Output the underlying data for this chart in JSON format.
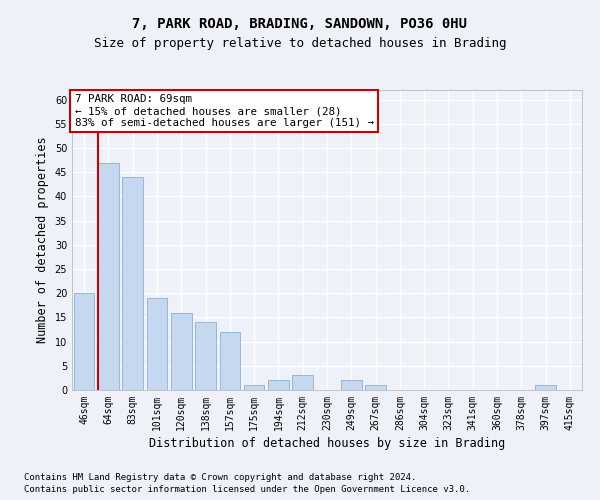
{
  "title1": "7, PARK ROAD, BRADING, SANDOWN, PO36 0HU",
  "title2": "Size of property relative to detached houses in Brading",
  "xlabel": "Distribution of detached houses by size in Brading",
  "ylabel": "Number of detached properties",
  "categories": [
    "46sqm",
    "64sqm",
    "83sqm",
    "101sqm",
    "120sqm",
    "138sqm",
    "157sqm",
    "175sqm",
    "194sqm",
    "212sqm",
    "230sqm",
    "249sqm",
    "267sqm",
    "286sqm",
    "304sqm",
    "323sqm",
    "341sqm",
    "360sqm",
    "378sqm",
    "397sqm",
    "415sqm"
  ],
  "values": [
    20,
    47,
    44,
    19,
    16,
    14,
    12,
    1,
    2,
    3,
    0,
    2,
    1,
    0,
    0,
    0,
    0,
    0,
    0,
    1,
    0
  ],
  "bar_color": "#c5d8f0",
  "bar_edge_color": "#8ab0d8",
  "vline_x_index": 1,
  "vline_color": "#cc0000",
  "annotation_title": "7 PARK ROAD: 69sqm",
  "annotation_line1": "← 15% of detached houses are smaller (28)",
  "annotation_line2": "83% of semi-detached houses are larger (151) →",
  "annotation_box_color": "#ffffff",
  "annotation_border_color": "#cc0000",
  "ylim": [
    0,
    62
  ],
  "yticks": [
    0,
    5,
    10,
    15,
    20,
    25,
    30,
    35,
    40,
    45,
    50,
    55,
    60
  ],
  "footnote1": "Contains HM Land Registry data © Crown copyright and database right 2024.",
  "footnote2": "Contains public sector information licensed under the Open Government Licence v3.0.",
  "bg_color": "#eef2f8",
  "plot_bg_color": "#eef2f8",
  "grid_color": "#ffffff",
  "title_fontsize": 10,
  "subtitle_fontsize": 9,
  "axis_label_fontsize": 8.5,
  "tick_fontsize": 7,
  "footnote_fontsize": 6.5,
  "annotation_fontsize": 7.8
}
